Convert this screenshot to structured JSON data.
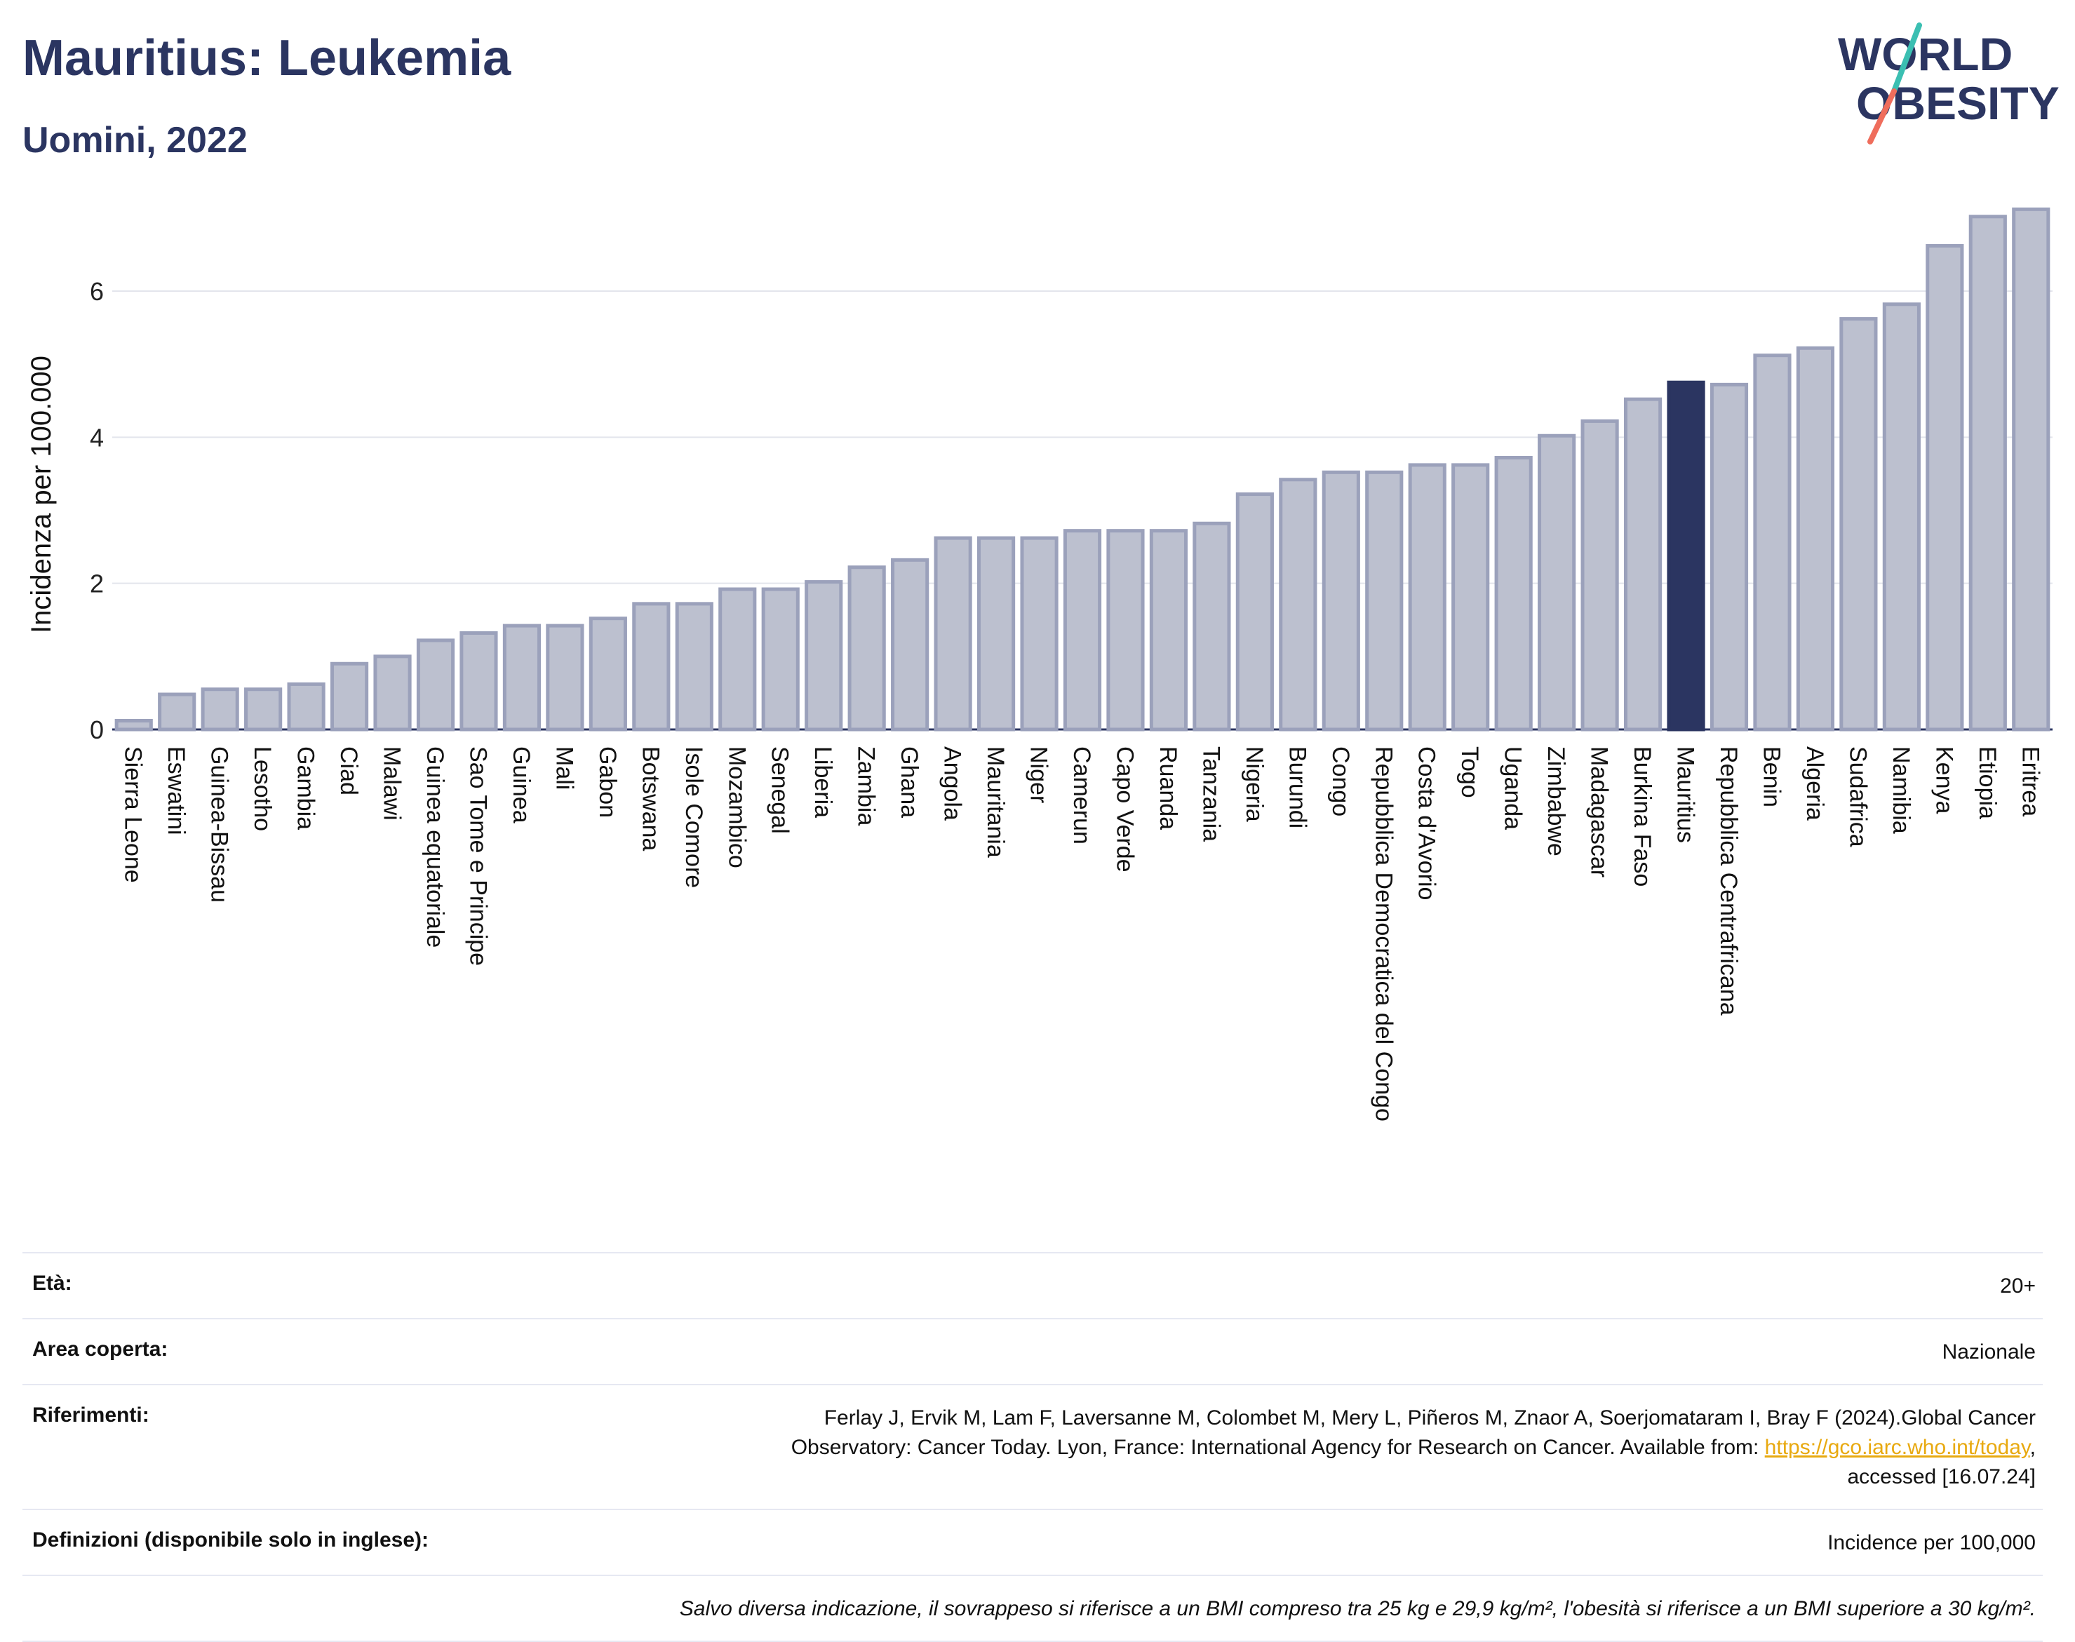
{
  "header": {
    "title": "Mauritius: Leukemia",
    "subtitle": "Uomini, 2022",
    "logo_line1": "WORLD",
    "logo_line2": "OBESITY"
  },
  "colors": {
    "bar_fill": "#bcc0cf",
    "bar_stroke": "#9ba1bb",
    "highlight": "#2b3561",
    "logo_text": "#2b3561",
    "logo_teal": "#3bbfb2",
    "logo_coral": "#ef6d5c",
    "link": "#e8a90f"
  },
  "chart_data": {
    "type": "bar",
    "title": "Mauritius: Leukemia",
    "subtitle": "Uomini, 2022",
    "xlabel": "",
    "ylabel": "Incidenza per 100.000",
    "ylim": [
      0,
      7.2
    ],
    "yticks": [
      0,
      2,
      4,
      6
    ],
    "grid": true,
    "highlight": "Mauritius",
    "categories": [
      "Sierra Leone",
      "Eswatini",
      "Guinea-Bissau",
      "Lesotho",
      "Gambia",
      "Ciad",
      "Malawi",
      "Guinea equatoriale",
      "Sao Tome e Principe",
      "Guinea",
      "Mali",
      "Gabon",
      "Botswana",
      "Isole Comore",
      "Mozambico",
      "Senegal",
      "Liberia",
      "Zambia",
      "Ghana",
      "Angola",
      "Mauritania",
      "Niger",
      "Camerun",
      "Capo Verde",
      "Ruanda",
      "Tanzania",
      "Nigeria",
      "Burundi",
      "Congo",
      "Repubblica Democratica del Congo",
      "Costa d'Avorio",
      "Togo",
      "Uganda",
      "Zimbabwe",
      "Madagascar",
      "Burkina Faso",
      "Mauritius",
      "Repubblica Centrafricana",
      "Benin",
      "Algeria",
      "Sudafrica",
      "Namibia",
      "Kenya",
      "Etiopia",
      "Eritrea"
    ],
    "values": [
      0.12,
      0.48,
      0.55,
      0.55,
      0.62,
      0.9,
      1.0,
      1.22,
      1.32,
      1.42,
      1.42,
      1.52,
      1.72,
      1.72,
      1.92,
      1.92,
      2.02,
      2.22,
      2.32,
      2.62,
      2.62,
      2.62,
      2.72,
      2.72,
      2.72,
      2.82,
      3.22,
      3.42,
      3.52,
      3.52,
      3.62,
      3.62,
      3.72,
      4.02,
      4.22,
      4.52,
      4.75,
      4.72,
      5.12,
      5.22,
      5.62,
      5.82,
      6.62,
      7.02,
      7.12
    ]
  },
  "meta": {
    "age_label": "Età:",
    "age_value": "20+",
    "area_label": "Area coperta:",
    "area_value": "Nazionale",
    "refs_label": "Riferimenti:",
    "refs_text1": "Ferlay J, Ervik M, Lam F, Laversanne M, Colombet M, Mery L, Piñeros M, Znaor A, Soerjomataram I, Bray F (2024).Global Cancer",
    "refs_text2": "Observatory: Cancer Today. Lyon, France: International Agency for Research on Cancer. Available from: ",
    "refs_link": "https://gco.iarc.who.int/today",
    "refs_text3": ",",
    "refs_text4": "accessed [16.07.24]",
    "defs_label": "Definizioni (disponibile solo in inglese):",
    "defs_value": "Incidence per 100,000",
    "note": "Salvo diversa indicazione, il sovrappeso si riferisce a un BMI compreso tra 25 kg e 29,9 kg/m², l'obesità si riferisce a un BMI superiore a 30 kg/m²."
  }
}
